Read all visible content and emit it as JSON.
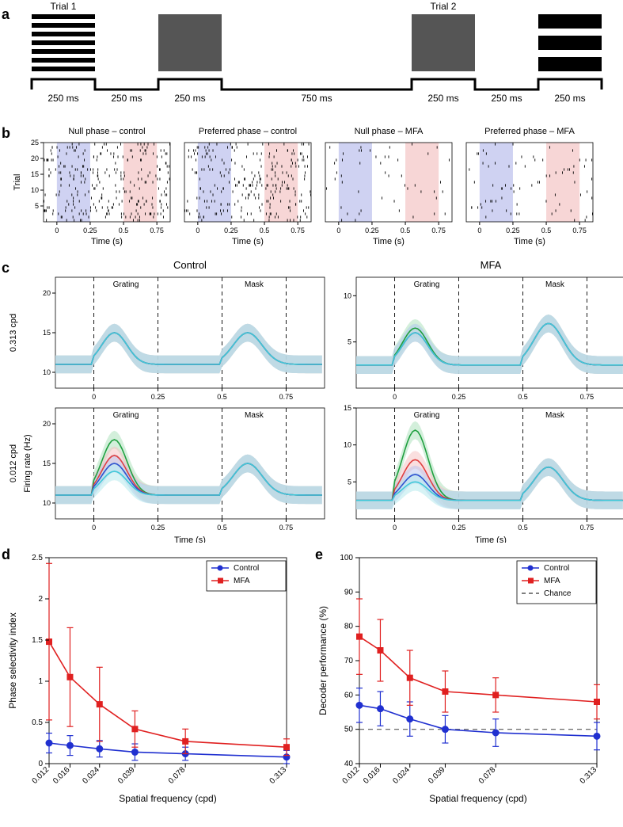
{
  "panels": {
    "a": "a",
    "b": "b",
    "c": "c",
    "d": "d",
    "e": "e"
  },
  "panel_a": {
    "trial1_label": "Trial 1",
    "trial2_label": "Trial 2",
    "timing_label": "250 ms",
    "isi_label": "750 ms",
    "square_color": "#555555",
    "bar_color": "#000000"
  },
  "panel_b": {
    "titles": [
      "Null phase – control",
      "Preferred phase – control",
      "Null phase – MFA",
      "Preferred phase – MFA"
    ],
    "y_label": "Trial",
    "x_label": "Time (s)",
    "blue_shade": "#cfd2f2",
    "red_shade": "#f7d6d6",
    "x_ticks": [
      "0",
      "0.25",
      "0.5",
      "0.75"
    ],
    "y_ticks": [
      "5",
      "10",
      "15",
      "20",
      "25"
    ]
  },
  "panel_c": {
    "col_titles": [
      "Control",
      "MFA"
    ],
    "row_labels": [
      "0.313 cpd",
      "0.012 cpd"
    ],
    "y_label": "Firing rate (Hz)",
    "x_label": "Time (s)",
    "stim_labels": [
      "Grating",
      "Mask"
    ],
    "x_ticks": [
      "0",
      "0.25",
      "0.5",
      "0.75"
    ],
    "y_ticks_left": [
      "10",
      "15",
      "20"
    ],
    "y_ticks_right": [
      "5",
      "10"
    ],
    "colors": {
      "green": "#20a040",
      "red": "#e04040",
      "blue": "#3050d0",
      "cyan": "#40c8d8",
      "green_fill": "#a8e0b8",
      "red_fill": "#f5c0c0",
      "blue_fill": "#b8c4f0",
      "cyan_fill": "#b0e8ec"
    }
  },
  "panel_d": {
    "y_label": "Phase selectivity index",
    "x_label": "Spatial frequency (cpd)",
    "x_ticks": [
      "0.012",
      "0.016",
      "0.024",
      "0.039",
      "0.078",
      "0.313"
    ],
    "y_ticks": [
      "0",
      "0.5",
      "1",
      "1.5",
      "2",
      "2.5"
    ],
    "legend": {
      "control": "Control",
      "mfa": "MFA"
    },
    "control_color": "#2030d0",
    "mfa_color": "#e02020",
    "control_y": [
      0.25,
      0.22,
      0.18,
      0.14,
      0.12,
      0.08
    ],
    "control_err": [
      0.12,
      0.12,
      0.1,
      0.1,
      0.08,
      0.08
    ],
    "mfa_y": [
      1.48,
      1.05,
      0.72,
      0.42,
      0.27,
      0.2
    ],
    "mfa_err": [
      0.95,
      0.6,
      0.45,
      0.22,
      0.15,
      0.1
    ]
  },
  "panel_e": {
    "y_label": "Decoder performance (%)",
    "x_label": "Spatial frequency (cpd)",
    "x_ticks": [
      "0.012",
      "0.016",
      "0.024",
      "0.039",
      "0.078",
      "0.313"
    ],
    "y_ticks": [
      "40",
      "50",
      "60",
      "70",
      "80",
      "90",
      "100"
    ],
    "legend": {
      "control": "Control",
      "mfa": "MFA",
      "chance": "Chance"
    },
    "control_color": "#2030d0",
    "mfa_color": "#e02020",
    "chance_color": "#555555",
    "control_y": [
      57,
      56,
      53,
      50,
      49,
      48
    ],
    "control_err": [
      5,
      5,
      5,
      4,
      4,
      4
    ],
    "mfa_y": [
      77,
      73,
      65,
      61,
      60,
      58
    ],
    "mfa_err": [
      11,
      9,
      8,
      6,
      5,
      5
    ],
    "chance_y": 50
  }
}
